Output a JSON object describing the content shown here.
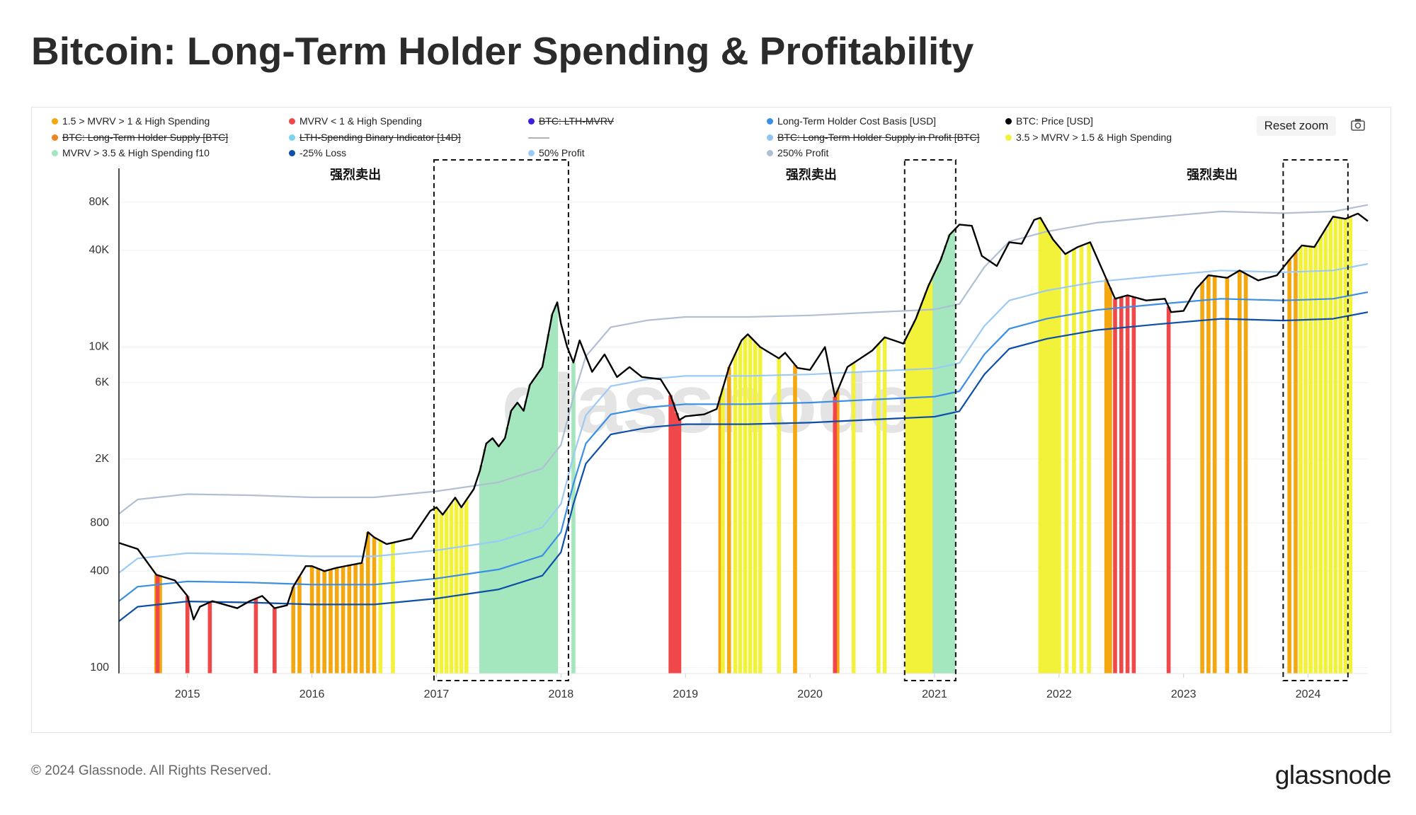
{
  "chart_data": {
    "type": "line",
    "title": "Bitcoin: Long-Term Holder Spending & Profitability",
    "watermark": "glassnode",
    "log_scale": true,
    "grid": true,
    "xlim": [
      2014.45,
      2024.48
    ],
    "xticks": [
      2015,
      2016,
      2017,
      2018,
      2019,
      2020,
      2021,
      2022,
      2023,
      2024
    ],
    "ylim": [
      92,
      130000
    ],
    "yticks": [
      100,
      400,
      800,
      {
        "value": 2000,
        "label": "2K"
      },
      {
        "value": 6000,
        "label": "6K"
      },
      {
        "value": 10000,
        "label": "10K"
      },
      {
        "value": 40000,
        "label": "40K"
      },
      {
        "value": 80000,
        "label": "80K"
      }
    ],
    "annotations": [
      {
        "text": "强烈卖出",
        "x": 2016.35
      },
      {
        "text": "强烈卖出",
        "x": 2020.01
      },
      {
        "text": "强烈卖出",
        "x": 2023.23
      }
    ],
    "highlight_ranges": [
      [
        2016.98,
        2018.06
      ],
      [
        2020.76,
        2021.17
      ],
      [
        2023.8,
        2024.32
      ]
    ],
    "series": [
      {
        "name": "1.5 > MVRV > 1 & High Spending",
        "color": "#f5a70f",
        "style": "stripes",
        "x": [
          2014.75,
          2014.78,
          2015.85,
          2015.9,
          2016.0,
          2016.05,
          2016.1,
          2016.15,
          2016.2,
          2016.25,
          2016.3,
          2016.35,
          2016.4,
          2016.45,
          2016.5,
          2019.28,
          2019.35,
          2019.88,
          2020.22,
          2022.38,
          2022.41,
          2023.15,
          2023.2,
          2023.25,
          2023.35,
          2023.45,
          2023.5,
          2023.85,
          2023.9
        ]
      },
      {
        "name": "MVRV < 1 & High Spending",
        "color": "#f04848",
        "style": "stripes",
        "x": [
          2014.76,
          2015.0,
          2015.18,
          2015.55,
          2015.7,
          2018.88,
          2018.9,
          2018.93,
          2018.95,
          2020.2,
          2022.45,
          2022.5,
          2022.55,
          2022.6,
          2022.88
        ]
      },
      {
        "name": "BTC: LTH-MVRV",
        "color": "#3b1fe0",
        "hidden": true
      },
      {
        "name": "Long-Term Holder Cost Basis [USD]",
        "color": "#3a8ee6",
        "style": "line",
        "x": [
          2014.45,
          2014.6,
          2015,
          2015.5,
          2016,
          2016.5,
          2017,
          2017.5,
          2017.85,
          2018,
          2018.1,
          2018.2,
          2018.4,
          2018.7,
          2019,
          2019.5,
          2020,
          2020.5,
          2021,
          2021.2,
          2021.4,
          2021.6,
          2021.9,
          2022.3,
          2022.8,
          2023.3,
          2023.8,
          2024.2,
          2024.48
        ],
        "values": [
          260,
          320,
          345,
          340,
          330,
          330,
          360,
          410,
          500,
          700,
          1400,
          2500,
          3800,
          4200,
          4400,
          4400,
          4500,
          4700,
          4900,
          5300,
          9000,
          13000,
          15000,
          17000,
          18500,
          20000,
          19500,
          20000,
          22000
        ]
      },
      {
        "name": "BTC: Price [USD]",
        "color": "#000000",
        "style": "line",
        "x": [
          2014.45,
          2014.6,
          2014.75,
          2014.9,
          2015.0,
          2015.05,
          2015.1,
          2015.2,
          2015.4,
          2015.5,
          2015.6,
          2015.7,
          2015.8,
          2015.85,
          2015.95,
          2016.0,
          2016.1,
          2016.2,
          2016.4,
          2016.45,
          2016.5,
          2016.6,
          2016.8,
          2016.95,
          2017.0,
          2017.05,
          2017.15,
          2017.2,
          2017.3,
          2017.35,
          2017.4,
          2017.45,
          2017.5,
          2017.55,
          2017.6,
          2017.65,
          2017.7,
          2017.75,
          2017.85,
          2017.93,
          2017.97,
          2018.0,
          2018.05,
          2018.1,
          2018.15,
          2018.25,
          2018.35,
          2018.45,
          2018.55,
          2018.65,
          2018.8,
          2018.88,
          2018.95,
          2019.0,
          2019.15,
          2019.25,
          2019.35,
          2019.45,
          2019.5,
          2019.6,
          2019.75,
          2019.8,
          2019.9,
          2020.0,
          2020.12,
          2020.2,
          2020.3,
          2020.5,
          2020.6,
          2020.75,
          2020.85,
          2020.95,
          2021.05,
          2021.12,
          2021.2,
          2021.3,
          2021.38,
          2021.5,
          2021.6,
          2021.7,
          2021.8,
          2021.85,
          2021.95,
          2022.05,
          2022.15,
          2022.25,
          2022.35,
          2022.45,
          2022.55,
          2022.7,
          2022.85,
          2022.9,
          2023.0,
          2023.1,
          2023.2,
          2023.35,
          2023.45,
          2023.6,
          2023.75,
          2023.85,
          2023.95,
          2024.05,
          2024.2,
          2024.3,
          2024.4,
          2024.48
        ],
        "values": [
          600,
          550,
          380,
          350,
          280,
          200,
          240,
          260,
          235,
          260,
          280,
          235,
          245,
          320,
          430,
          430,
          400,
          420,
          450,
          700,
          650,
          590,
          640,
          950,
          1000,
          900,
          1150,
          1000,
          1300,
          1700,
          2500,
          2700,
          2400,
          2700,
          4000,
          4500,
          4000,
          5800,
          7500,
          16000,
          19000,
          14000,
          10000,
          8000,
          11000,
          7000,
          9000,
          6500,
          7500,
          6500,
          6300,
          5000,
          3500,
          3700,
          3800,
          4100,
          7500,
          11000,
          12000,
          10000,
          8500,
          9200,
          7400,
          7200,
          10000,
          4900,
          7500,
          9500,
          11500,
          10500,
          15000,
          24000,
          35000,
          50000,
          58000,
          57000,
          37000,
          32000,
          45000,
          44000,
          62000,
          64000,
          47000,
          38000,
          42000,
          45000,
          30000,
          20000,
          21000,
          19500,
          20000,
          16500,
          16800,
          23000,
          28000,
          27000,
          30000,
          26000,
          28000,
          35000,
          43000,
          42000,
          65000,
          63000,
          68000,
          61000
        ]
      },
      {
        "name": "BTC: Long-Term Holder Supply [BTC]",
        "color": "#f0841c",
        "hidden": true
      },
      {
        "name": "LTH-Spending Binary Indicator [14D]",
        "color": "#7dd3ee",
        "hidden": true
      },
      {
        "name": "BTC: Long-Term Holder Supply in Profit [BTC]",
        "color": "#90c4f2",
        "hidden": true
      },
      {
        "name": "3.5 > MVRV > 1.5 & High Spending",
        "color": "#f2f23a",
        "style": "stripes",
        "x": [
          2016.55,
          2016.65,
          2017.0,
          2017.04,
          2017.08,
          2017.12,
          2017.16,
          2017.2,
          2017.24,
          2019.3,
          2019.4,
          2019.44,
          2019.48,
          2019.52,
          2019.56,
          2019.6,
          2019.75,
          2020.35,
          2020.55,
          2020.6,
          2020.78,
          2020.81,
          2020.84,
          2020.87,
          2020.9,
          2020.93,
          2020.96,
          2020.99,
          2021.85,
          2021.88,
          2021.91,
          2021.94,
          2021.97,
          2022.0,
          2022.06,
          2022.12,
          2022.18,
          2022.24,
          2023.94,
          2023.98,
          2024.02,
          2024.06,
          2024.1,
          2024.14,
          2024.18,
          2024.22,
          2024.26,
          2024.3,
          2024.34
        ]
      },
      {
        "name": "MVRV > 3.5 & High Spending f10",
        "color": "#a4e6be",
        "style": "stripes",
        "x": [
          2017.36,
          2017.39,
          2017.42,
          2017.45,
          2017.48,
          2017.51,
          2017.54,
          2017.57,
          2017.6,
          2017.63,
          2017.66,
          2017.69,
          2017.72,
          2017.75,
          2017.78,
          2017.81,
          2017.84,
          2017.87,
          2017.9,
          2017.93,
          2017.96,
          2018.1,
          2021.0,
          2021.03,
          2021.06,
          2021.09,
          2021.12,
          2021.15
        ]
      },
      {
        "name": "-25% Loss",
        "color": "#0d4fa8",
        "style": "line",
        "x": [
          2014.45,
          2014.6,
          2015,
          2015.5,
          2016,
          2016.5,
          2017,
          2017.5,
          2017.85,
          2018,
          2018.1,
          2018.2,
          2018.4,
          2018.7,
          2019,
          2019.5,
          2020,
          2020.5,
          2021,
          2021.2,
          2021.4,
          2021.6,
          2021.9,
          2022.3,
          2022.8,
          2023.3,
          2023.8,
          2024.2,
          2024.48
        ],
        "values": [
          195,
          240,
          259,
          255,
          248,
          248,
          270,
          308,
          375,
          525,
          1050,
          1875,
          2850,
          3150,
          3300,
          3300,
          3375,
          3525,
          3675,
          3975,
          6750,
          9750,
          11250,
          12750,
          13875,
          15000,
          14625,
          15000,
          16500
        ]
      },
      {
        "name": "50% Profit",
        "color": "#9ccaf5",
        "style": "line",
        "x": [
          2014.45,
          2014.6,
          2015,
          2015.5,
          2016,
          2016.5,
          2017,
          2017.5,
          2017.85,
          2018,
          2018.1,
          2018.2,
          2018.4,
          2018.7,
          2019,
          2019.5,
          2020,
          2020.5,
          2021,
          2021.2,
          2021.4,
          2021.6,
          2021.9,
          2022.3,
          2022.8,
          2023.3,
          2023.8,
          2024.2,
          2024.48
        ],
        "values": [
          390,
          480,
          518,
          510,
          495,
          495,
          540,
          615,
          750,
          1050,
          2100,
          3750,
          5700,
          6300,
          6600,
          6600,
          6750,
          7050,
          7350,
          7950,
          13500,
          19500,
          22500,
          25500,
          27750,
          30000,
          29250,
          30000,
          33000
        ]
      },
      {
        "name": "250% Profit",
        "color": "#b0bfd3",
        "style": "line",
        "x": [
          2014.45,
          2014.6,
          2015,
          2015.5,
          2016,
          2016.5,
          2017,
          2017.5,
          2017.85,
          2018,
          2018.1,
          2018.2,
          2018.4,
          2018.7,
          2019,
          2019.5,
          2020,
          2020.5,
          2021,
          2021.2,
          2021.4,
          2021.6,
          2021.9,
          2022.3,
          2022.8,
          2023.3,
          2023.8,
          2024.2,
          2024.48
        ],
        "values": [
          910,
          1120,
          1208,
          1190,
          1155,
          1155,
          1260,
          1435,
          1750,
          2450,
          4900,
          8750,
          13300,
          14700,
          15400,
          15400,
          15750,
          16450,
          17150,
          18550,
          31500,
          45500,
          52500,
          59500,
          64750,
          70000,
          68250,
          70000,
          77000
        ]
      }
    ]
  },
  "reset_zoom": "Reset zoom",
  "copyright": "© 2024 Glassnode. All Rights Reserved.",
  "logo": "glassnode"
}
